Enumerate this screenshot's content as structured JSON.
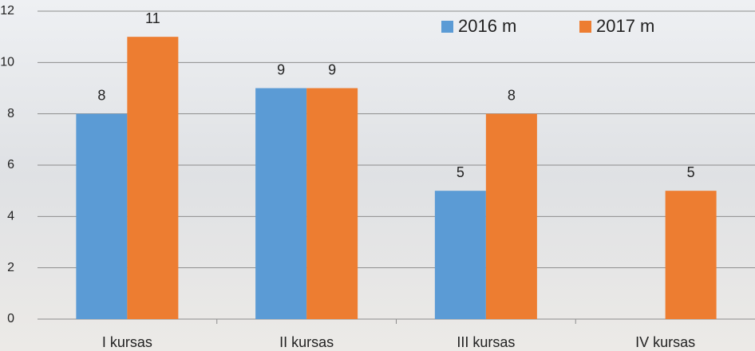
{
  "chart_data": {
    "type": "bar",
    "categories": [
      "I kursas",
      "II kursas",
      "III kursas",
      "IV kursas"
    ],
    "series": [
      {
        "name": "2016 m",
        "color": "#5b9bd5",
        "values": [
          8,
          9,
          5,
          null
        ]
      },
      {
        "name": "2017 m",
        "color": "#ed7d31",
        "values": [
          11,
          9,
          8,
          5
        ]
      }
    ],
    "ylim": [
      0,
      12
    ],
    "yticks": [
      0,
      2,
      4,
      6,
      8,
      10,
      12
    ],
    "grid": true,
    "legend": "top-right"
  }
}
